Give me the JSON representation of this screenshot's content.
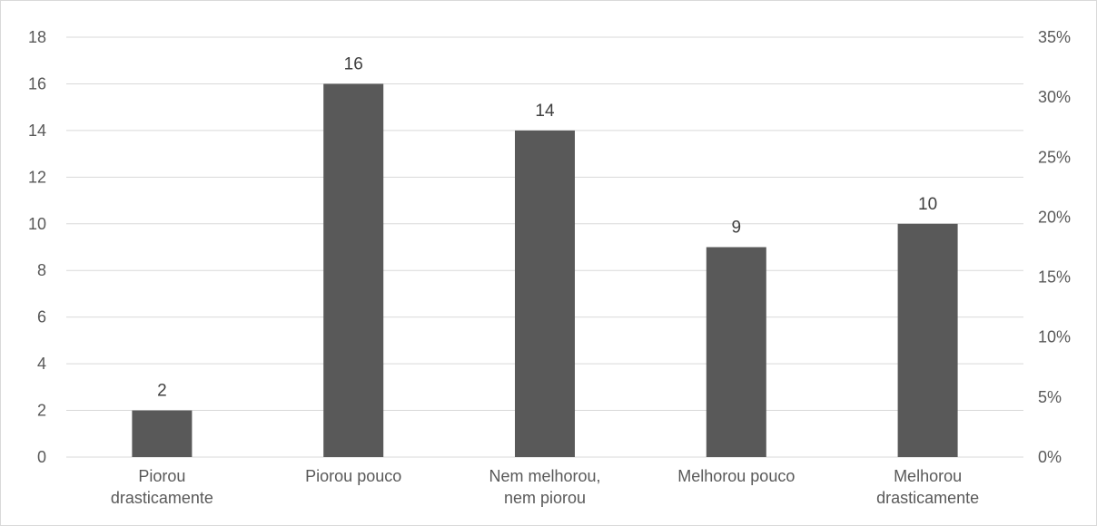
{
  "chart_data": {
    "type": "bar",
    "categories": [
      [
        "Piorou",
        "drasticamente"
      ],
      [
        "Piorou pouco"
      ],
      [
        "Nem melhorou,",
        "nem piorou"
      ],
      [
        "Melhorou pouco"
      ],
      [
        "Melhorou",
        "drasticamente"
      ]
    ],
    "values": [
      2,
      16,
      14,
      9,
      10
    ],
    "data_labels": [
      "2",
      "16",
      "14",
      "9",
      "10"
    ],
    "ylim": [
      0,
      18
    ],
    "y_ticks": [
      "0",
      "2",
      "4",
      "6",
      "8",
      "10",
      "12",
      "14",
      "16",
      "18"
    ],
    "y2lim": [
      0,
      35
    ],
    "y2_ticks": [
      "0%",
      "5%",
      "10%",
      "15%",
      "20%",
      "25%",
      "30%",
      "35%"
    ],
    "grid": true,
    "legend": "none",
    "colors": {
      "bar": "#595959",
      "grid": "#d9d9d9",
      "border": "#d9d9d9",
      "text": "#595959"
    }
  }
}
